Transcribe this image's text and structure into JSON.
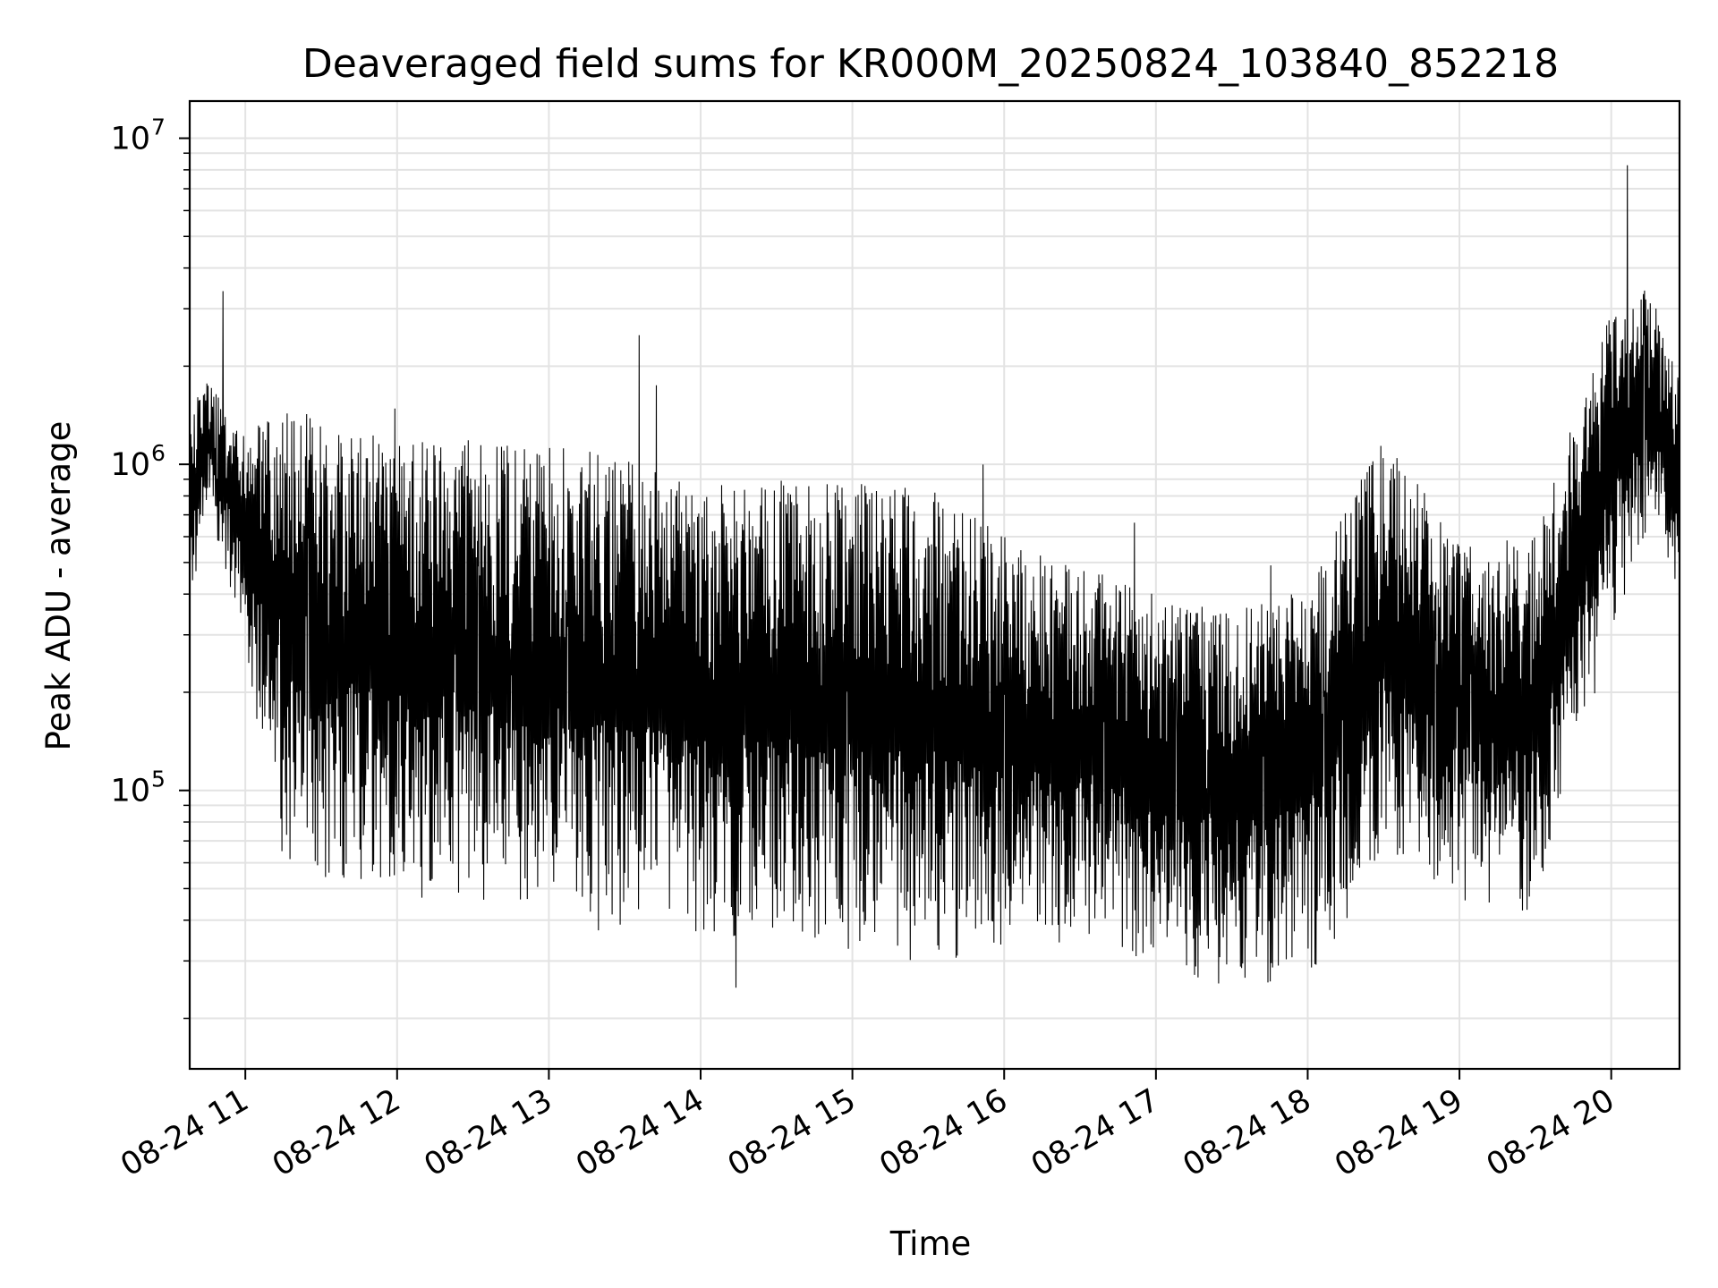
{
  "chart_data": {
    "type": "line",
    "title": "Deaveraged field sums for KR000M_20250824_103840_852218",
    "xlabel": "Time",
    "ylabel": "Peak ADU - average",
    "yscale": "log",
    "ylim": [
      14000,
      13000000
    ],
    "xlim": [
      "2025-08-24 10:38",
      "2025-08-24 20:27"
    ],
    "grid": true,
    "x_ticks": [
      "08-24 11",
      "08-24 12",
      "08-24 13",
      "08-24 14",
      "08-24 15",
      "08-24 16",
      "08-24 17",
      "08-24 18",
      "08-24 19",
      "08-24 20"
    ],
    "y_ticks": [
      {
        "base": "10",
        "exp": "5",
        "value": 100000
      },
      {
        "base": "10",
        "exp": "6",
        "value": 1000000
      },
      {
        "base": "10",
        "exp": "7",
        "value": 10000000
      }
    ],
    "line_color": "#000000",
    "series": [
      {
        "x": [
          "2025-08-24 10:38",
          "2025-08-24 10:45",
          "2025-08-24 11:00",
          "2025-08-24 11:15",
          "2025-08-24 11:30",
          "2025-08-24 12:00",
          "2025-08-24 12:30",
          "2025-08-24 13:00",
          "2025-08-24 13:30",
          "2025-08-24 14:00",
          "2025-08-24 14:30",
          "2025-08-24 15:00",
          "2025-08-24 15:30",
          "2025-08-24 16:00",
          "2025-08-24 16:30",
          "2025-08-24 17:00",
          "2025-08-24 17:30",
          "2025-08-24 18:00",
          "2025-08-24 18:30",
          "2025-08-24 19:00",
          "2025-08-24 19:30",
          "2025-08-24 20:00",
          "2025-08-24 20:15",
          "2025-08-24 20:27"
        ],
        "high": [
          1500000,
          1800000,
          1300000,
          1500000,
          1400000,
          1200000,
          1200000,
          1150000,
          1050000,
          850000,
          900000,
          900000,
          850000,
          600000,
          500000,
          400000,
          350000,
          450000,
          1200000,
          600000,
          600000,
          3000000,
          3500000,
          1800000
        ],
        "low": [
          350000,
          800000,
          250000,
          60000,
          50000,
          50000,
          45000,
          40000,
          35000,
          35000,
          35000,
          30000,
          30000,
          30000,
          35000,
          28000,
          25000,
          25000,
          60000,
          45000,
          40000,
          300000,
          600000,
          400000
        ]
      }
    ]
  }
}
